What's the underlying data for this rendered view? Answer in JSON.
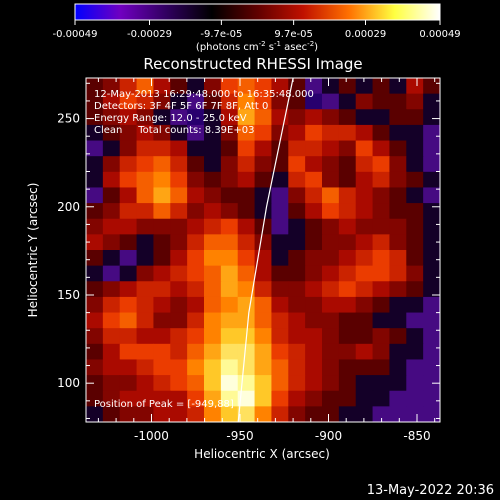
{
  "colorbar": {
    "ticks": [
      "-0.00049",
      "-0.00029",
      "-9.7e-05",
      "9.7e-05",
      "0.00029",
      "0.00049"
    ],
    "tick_values": [
      -0.00049,
      -0.00029,
      -9.7e-05,
      9.7e-05,
      0.00029,
      0.00049
    ],
    "range": [
      -0.00049,
      0.00049
    ],
    "units_line": "(photons cm",
    "units_sup1": "-2",
    "units_mid": " s",
    "units_sup2": "-1",
    "units_end": " asec",
    "units_sup3": "-2",
    "units_close": ")",
    "colors": [
      "#0000ff",
      "#7000c0",
      "#300060",
      "#000000",
      "#600000",
      "#c01000",
      "#ff7000",
      "#ffff40",
      "#ffffff"
    ]
  },
  "title": "Reconstructed RHESSI Image",
  "info": [
    "12-May-2013 16:29:48.000 to 16:35:48.000",
    "Detectors: 3F 4F 5F 6F 7F 8F, Att 0",
    "Energy Range: 12.0 - 25.0 keV",
    "Clean     Total counts: 8.39E+03"
  ],
  "peak_text": "Position of Peak = [-949,88]",
  "footer": "13-May-2022 20:36",
  "chart_data": {
    "type": "heatmap",
    "title": "Reconstructed RHESSI Image",
    "xlabel": "Heliocentric X (arcsec)",
    "ylabel": "Heliocentric Y (arcsec)",
    "xlim": [
      -1037,
      -837
    ],
    "ylim": [
      78,
      273
    ],
    "xticks": [
      -1000,
      -950,
      -900,
      -850
    ],
    "xtick_labels": [
      "-1000",
      "-950",
      "-900",
      "-850"
    ],
    "yticks": [
      100,
      150,
      200,
      250
    ],
    "ytick_labels": [
      "100",
      "150",
      "200",
      "250"
    ],
    "peak": [
      -949,
      88
    ],
    "limb_curve": [
      [
        -951,
        78
      ],
      [
        -945,
        140
      ],
      [
        -935,
        200
      ],
      [
        -920,
        273
      ]
    ],
    "intensity_grid": {
      "rows_top_to_bottom": 22,
      "cols": 21,
      "values": [
        [
          1,
          2,
          4,
          6,
          3,
          1,
          0,
          2,
          5,
          6,
          5,
          3,
          1,
          -1,
          0,
          1,
          0,
          1,
          0,
          3,
          1
        ],
        [
          1,
          3,
          5,
          4,
          2,
          0,
          -1,
          1,
          4,
          7,
          5,
          2,
          1,
          -2,
          -1,
          0,
          2,
          1,
          1,
          2,
          0
        ],
        [
          1,
          2,
          3,
          2,
          0,
          -1,
          -2,
          0,
          3,
          8,
          6,
          3,
          2,
          3,
          2,
          1,
          0,
          0,
          1,
          1,
          0
        ],
        [
          0,
          1,
          2,
          3,
          2,
          0,
          -1,
          0,
          2,
          6,
          5,
          2,
          3,
          5,
          4,
          4,
          3,
          1,
          0,
          0,
          -1
        ],
        [
          -1,
          0,
          2,
          4,
          4,
          3,
          0,
          0,
          1,
          5,
          3,
          1,
          4,
          4,
          3,
          2,
          5,
          3,
          1,
          0,
          -1
        ],
        [
          0,
          2,
          4,
          5,
          6,
          4,
          1,
          0,
          2,
          4,
          2,
          1,
          5,
          3,
          2,
          1,
          4,
          5,
          2,
          0,
          -1
        ],
        [
          0,
          3,
          5,
          6,
          7,
          5,
          2,
          1,
          2,
          3,
          1,
          0,
          4,
          5,
          2,
          1,
          3,
          4,
          2,
          1,
          0
        ],
        [
          -1,
          1,
          3,
          6,
          8,
          6,
          3,
          2,
          1,
          1,
          0,
          -1,
          2,
          4,
          6,
          4,
          3,
          2,
          1,
          0,
          -1
        ],
        [
          1,
          2,
          4,
          4,
          6,
          4,
          2,
          3,
          2,
          1,
          0,
          -1,
          1,
          3,
          5,
          4,
          3,
          2,
          1,
          1,
          0
        ],
        [
          2,
          3,
          3,
          2,
          2,
          2,
          3,
          4,
          5,
          3,
          1,
          -1,
          0,
          1,
          2,
          3,
          2,
          2,
          2,
          1,
          0
        ],
        [
          3,
          2,
          1,
          0,
          1,
          2,
          4,
          6,
          6,
          4,
          2,
          0,
          0,
          1,
          2,
          2,
          3,
          4,
          2,
          1,
          0
        ],
        [
          1,
          0,
          -1,
          0,
          1,
          3,
          5,
          7,
          7,
          5,
          3,
          0,
          1,
          2,
          2,
          3,
          4,
          5,
          4,
          1,
          0
        ],
        [
          0,
          -1,
          0,
          2,
          3,
          4,
          5,
          6,
          8,
          6,
          3,
          1,
          1,
          2,
          3,
          4,
          5,
          5,
          4,
          2,
          0
        ],
        [
          1,
          2,
          3,
          4,
          4,
          3,
          4,
          6,
          8,
          7,
          4,
          2,
          2,
          3,
          4,
          5,
          4,
          3,
          2,
          1,
          0
        ],
        [
          2,
          4,
          5,
          4,
          3,
          2,
          3,
          6,
          7,
          8,
          6,
          3,
          2,
          2,
          3,
          3,
          2,
          1,
          0,
          0,
          -1
        ],
        [
          3,
          5,
          6,
          4,
          2,
          2,
          4,
          7,
          8,
          8,
          6,
          4,
          3,
          2,
          2,
          1,
          1,
          0,
          0,
          -1,
          -1
        ],
        [
          2,
          4,
          4,
          3,
          3,
          4,
          5,
          7,
          9,
          9,
          7,
          4,
          3,
          3,
          2,
          1,
          1,
          2,
          1,
          0,
          -1
        ],
        [
          1,
          3,
          5,
          5,
          5,
          4,
          6,
          8,
          10,
          10,
          8,
          5,
          4,
          3,
          2,
          2,
          3,
          2,
          0,
          0,
          -1
        ],
        [
          2,
          3,
          3,
          4,
          5,
          5,
          7,
          9,
          11,
          10,
          8,
          6,
          4,
          3,
          2,
          1,
          1,
          1,
          0,
          -1,
          -1
        ],
        [
          1,
          2,
          2,
          3,
          4,
          5,
          6,
          9,
          12,
          11,
          9,
          6,
          4,
          3,
          2,
          1,
          0,
          0,
          0,
          -1,
          -1
        ],
        [
          1,
          2,
          3,
          3,
          3,
          3,
          5,
          8,
          11,
          12,
          9,
          5,
          3,
          2,
          1,
          1,
          0,
          0,
          -1,
          -1,
          -1
        ],
        [
          0,
          1,
          2,
          2,
          3,
          3,
          4,
          7,
          9,
          10,
          7,
          4,
          2,
          1,
          1,
          0,
          0,
          -1,
          -1,
          -1,
          -1
        ]
      ]
    },
    "limb_color": "#ffffff"
  }
}
